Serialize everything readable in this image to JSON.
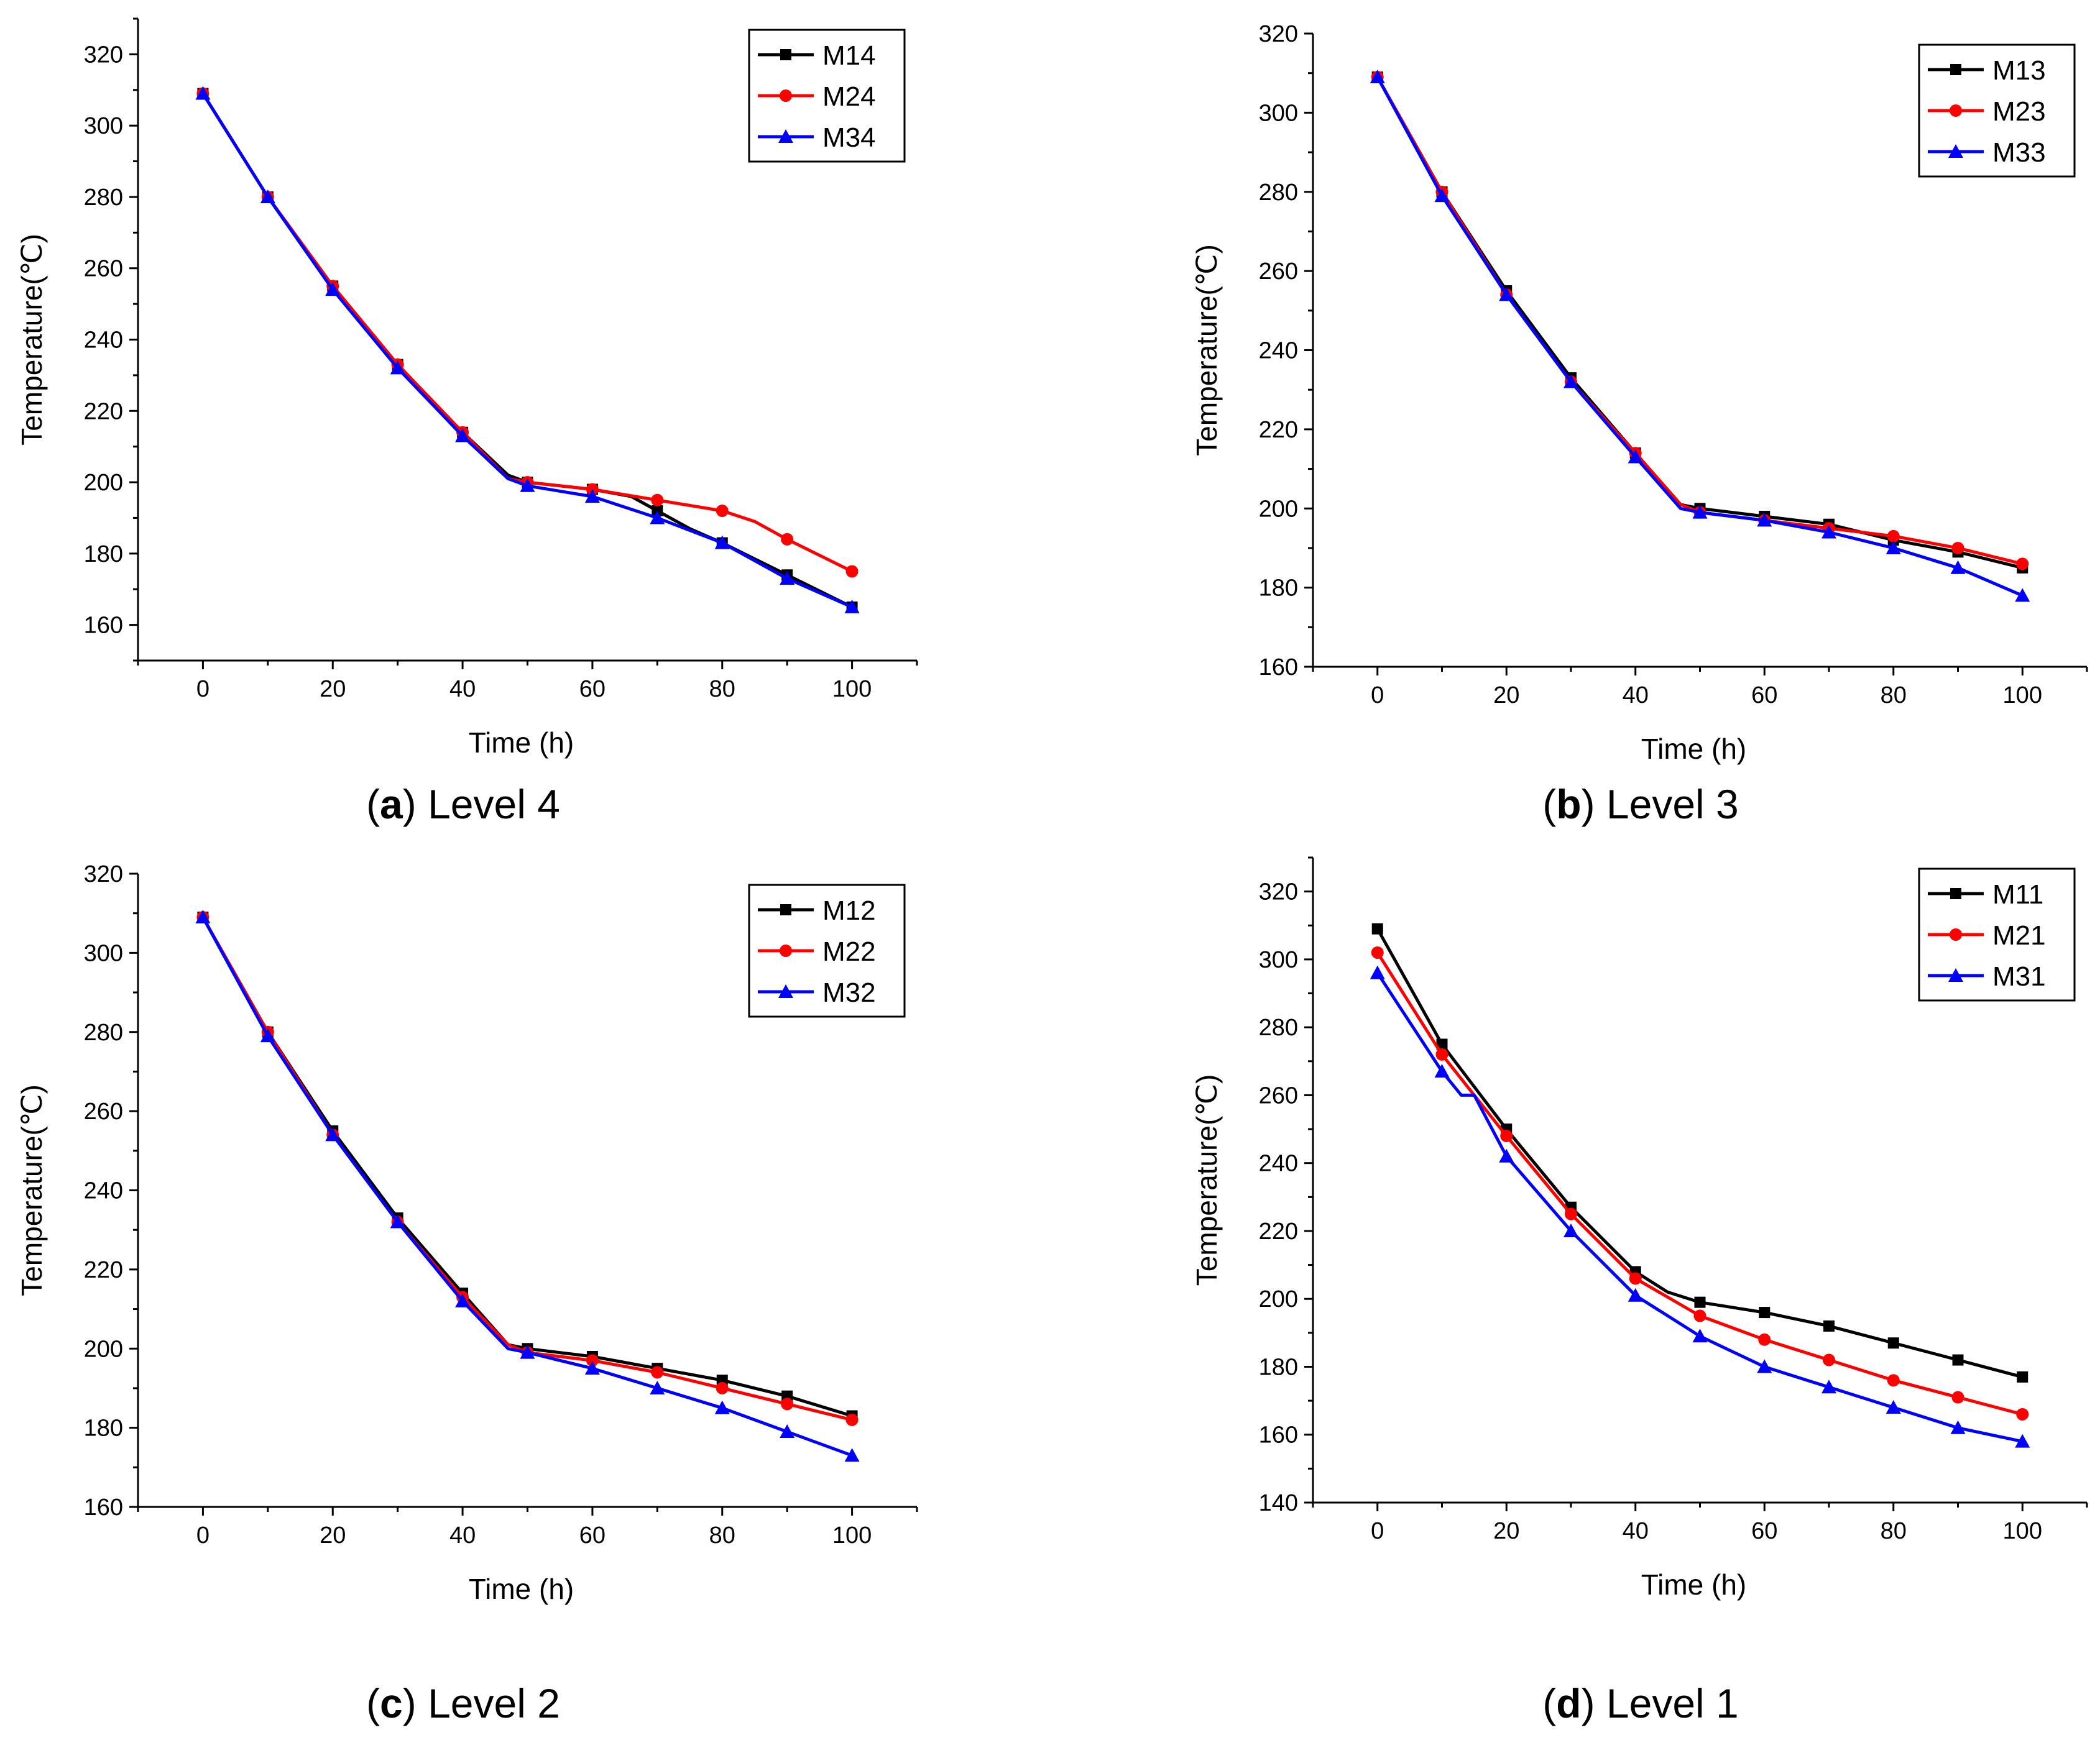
{
  "colors": {
    "black": "#000000",
    "red": "#ff0000",
    "blue": "#0000ff"
  },
  "chart_data": [
    {
      "type": "line",
      "caption_letter": "a",
      "caption_text": "Level 4",
      "xlabel": "Time (h)",
      "ylabel": "Temperature(℃)",
      "xlim": [
        -10,
        110
      ],
      "ylim": [
        150,
        330
      ],
      "xticks": [
        0,
        20,
        40,
        60,
        80,
        100
      ],
      "xtick_labels": [
        "0",
        "20",
        "40",
        "60",
        "80",
        "100"
      ],
      "yticks": [
        160,
        180,
        200,
        220,
        240,
        260,
        280,
        300,
        320
      ],
      "ytick_labels": [
        "160",
        "180",
        "200",
        "220",
        "240",
        "260",
        "280",
        "300",
        "320"
      ],
      "legend_position": "top-right",
      "series": [
        {
          "name": "M14",
          "color": "black",
          "marker": "square",
          "x": [
            0,
            10,
            20,
            30,
            40,
            47,
            50,
            60,
            66,
            70,
            75,
            80,
            90,
            100
          ],
          "y": [
            309,
            280,
            255,
            233,
            214,
            202,
            200,
            198,
            196,
            192,
            187,
            183,
            174,
            165
          ]
        },
        {
          "name": "M24",
          "color": "red",
          "marker": "circle",
          "x": [
            0,
            10,
            20,
            30,
            40,
            47,
            50,
            60,
            70,
            80,
            85,
            90,
            100
          ],
          "y": [
            309,
            280,
            255,
            233,
            214,
            201,
            200,
            198,
            195,
            192,
            189,
            184,
            175
          ]
        },
        {
          "name": "M34",
          "color": "blue",
          "marker": "triangle",
          "x": [
            0,
            10,
            20,
            30,
            40,
            47,
            50,
            60,
            70,
            80,
            90,
            100
          ],
          "y": [
            309,
            280,
            254,
            232,
            213,
            201,
            199,
            196,
            190,
            183,
            173,
            165
          ]
        }
      ]
    },
    {
      "type": "line",
      "caption_letter": "b",
      "caption_text": "Level 3",
      "xlabel": "Time (h)",
      "ylabel": "Temperature(℃)",
      "xlim": [
        -10,
        110
      ],
      "ylim": [
        160,
        320
      ],
      "xticks": [
        0,
        20,
        40,
        60,
        80,
        100
      ],
      "xtick_labels": [
        "0",
        "20",
        "40",
        "60",
        "80",
        "100"
      ],
      "yticks": [
        160,
        180,
        200,
        220,
        240,
        260,
        280,
        300,
        320
      ],
      "ytick_labels": [
        "160",
        "180",
        "200",
        "220",
        "240",
        "260",
        "280",
        "300",
        "320"
      ],
      "legend_position": "top-right",
      "series": [
        {
          "name": "M13",
          "color": "black",
          "marker": "square",
          "x": [
            0,
            10,
            20,
            30,
            40,
            47,
            50,
            60,
            70,
            80,
            90,
            100
          ],
          "y": [
            309,
            280,
            255,
            233,
            214,
            201,
            200,
            198,
            196,
            192,
            189,
            185
          ]
        },
        {
          "name": "M23",
          "color": "red",
          "marker": "circle",
          "x": [
            0,
            10,
            20,
            30,
            40,
            47,
            50,
            60,
            70,
            80,
            90,
            100
          ],
          "y": [
            309,
            280,
            254,
            232,
            214,
            201,
            199,
            197,
            195,
            193,
            190,
            186
          ]
        },
        {
          "name": "M33",
          "color": "blue",
          "marker": "triangle",
          "x": [
            0,
            10,
            20,
            30,
            40,
            47,
            50,
            60,
            70,
            80,
            90,
            100
          ],
          "y": [
            309,
            279,
            254,
            232,
            213,
            200,
            199,
            197,
            194,
            190,
            185,
            178
          ]
        }
      ]
    },
    {
      "type": "line",
      "caption_letter": "c",
      "caption_text": "Level 2",
      "xlabel": "Time (h)",
      "ylabel": "Temperature(℃)",
      "xlim": [
        -10,
        110
      ],
      "ylim": [
        160,
        320
      ],
      "xticks": [
        0,
        20,
        40,
        60,
        80,
        100
      ],
      "xtick_labels": [
        "0",
        "20",
        "40",
        "60",
        "80",
        "100"
      ],
      "yticks": [
        160,
        180,
        200,
        220,
        240,
        260,
        280,
        300,
        320
      ],
      "ytick_labels": [
        "160",
        "180",
        "200",
        "220",
        "240",
        "260",
        "280",
        "300",
        "320"
      ],
      "legend_position": "top-right",
      "series": [
        {
          "name": "M12",
          "color": "black",
          "marker": "square",
          "x": [
            0,
            10,
            20,
            30,
            40,
            47,
            50,
            60,
            70,
            80,
            90,
            100
          ],
          "y": [
            309,
            280,
            255,
            233,
            214,
            201,
            200,
            198,
            195,
            192,
            188,
            183
          ]
        },
        {
          "name": "M22",
          "color": "red",
          "marker": "circle",
          "x": [
            0,
            10,
            20,
            30,
            40,
            47,
            50,
            60,
            70,
            80,
            90,
            100
          ],
          "y": [
            309,
            280,
            254,
            232,
            213,
            201,
            199,
            197,
            194,
            190,
            186,
            182
          ]
        },
        {
          "name": "M32",
          "color": "blue",
          "marker": "triangle",
          "x": [
            0,
            10,
            20,
            30,
            40,
            47,
            50,
            60,
            70,
            80,
            90,
            100
          ],
          "y": [
            309,
            279,
            254,
            232,
            212,
            200,
            199,
            195,
            190,
            185,
            179,
            173
          ]
        }
      ]
    },
    {
      "type": "line",
      "caption_letter": "d",
      "caption_text": "Level 1",
      "xlabel": "Time (h)",
      "ylabel": "Temperature(℃)",
      "xlim": [
        -10,
        110
      ],
      "ylim": [
        140,
        330
      ],
      "xticks": [
        0,
        20,
        40,
        60,
        80,
        100
      ],
      "xtick_labels": [
        "0",
        "20",
        "40",
        "60",
        "80",
        "100"
      ],
      "yticks": [
        140,
        160,
        180,
        200,
        220,
        240,
        260,
        280,
        300,
        320
      ],
      "ytick_labels": [
        "140",
        "160",
        "180",
        "200",
        "220",
        "240",
        "260",
        "280",
        "300",
        "320"
      ],
      "legend_position": "top-right",
      "series": [
        {
          "name": "M11",
          "color": "black",
          "marker": "square",
          "x": [
            0,
            10,
            20,
            30,
            40,
            45,
            50,
            60,
            70,
            80,
            90,
            100
          ],
          "y": [
            309,
            275,
            250,
            227,
            208,
            202,
            199,
            196,
            192,
            187,
            182,
            177
          ]
        },
        {
          "name": "M21",
          "color": "red",
          "marker": "circle",
          "x": [
            0,
            10,
            20,
            30,
            40,
            50,
            60,
            70,
            80,
            90,
            100
          ],
          "y": [
            302,
            272,
            248,
            225,
            206,
            195,
            188,
            182,
            176,
            171,
            166
          ]
        },
        {
          "name": "M31",
          "color": "blue",
          "marker": "triangle",
          "x": [
            0,
            10,
            13,
            15,
            20,
            30,
            40,
            50,
            60,
            70,
            80,
            90,
            100
          ],
          "y": [
            296,
            267,
            260,
            260,
            242,
            220,
            201,
            189,
            180,
            174,
            168,
            162,
            158
          ]
        }
      ]
    }
  ]
}
